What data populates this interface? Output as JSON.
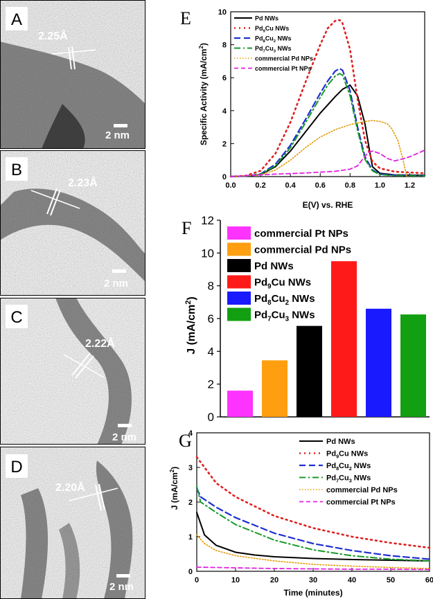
{
  "panels": {
    "A": {
      "letter": "A",
      "spacing": "2.25Å",
      "scale": "2 nm"
    },
    "B": {
      "letter": "B",
      "spacing": "2.23Å",
      "scale": "2 nm"
    },
    "C": {
      "letter": "C",
      "spacing": "2.22Å",
      "scale": "2 nm"
    },
    "D": {
      "letter": "D",
      "spacing": "2.20Å",
      "scale": "2 nm"
    }
  },
  "colors": {
    "pd_nws": "#000000",
    "pd9cu": "#e02020",
    "pd8cu2": "#1f2fd0",
    "pd7cu3": "#179a2a",
    "comm_pd": "#e39a00",
    "comm_pt": "#e020e0",
    "bar_pt": "#ff33ff",
    "bar_pd_np": "#ff9f0f",
    "bar_pd_nw": "#000000",
    "bar_pd9cu": "#ff1a1a",
    "bar_pd8cu2": "#1a1aff",
    "bar_pd7cu3": "#12a012"
  },
  "chart_data": [
    {
      "panel": "E",
      "type": "line",
      "xlabel": "E(V) vs. RHE",
      "ylabel": "Specific Activity (mA/cm²)",
      "xlim": [
        0,
        1.3
      ],
      "ylim": [
        0,
        10
      ],
      "xticks": [
        "0.0",
        "0.2",
        "0.4",
        "0.6",
        "0.8",
        "1.0",
        "1.2"
      ],
      "yticks": [
        "0",
        "2",
        "4",
        "6",
        "8",
        "10"
      ],
      "legend_position": "top-left",
      "series": [
        {
          "name": "Pd NWs",
          "style": "solid",
          "x": [
            0,
            0.1,
            0.2,
            0.3,
            0.4,
            0.5,
            0.6,
            0.7,
            0.75,
            0.8,
            0.85,
            0.9,
            0.93,
            0.95,
            1.0,
            1.1,
            1.3
          ],
          "y": [
            0,
            0.03,
            0.12,
            0.6,
            1.55,
            2.7,
            3.85,
            4.85,
            5.3,
            5.55,
            4.9,
            3.2,
            1.6,
            0.6,
            0.2,
            0.1,
            0.08
          ]
        },
        {
          "name": "Pd9Cu NWs",
          "style": "dotted",
          "x": [
            0,
            0.1,
            0.2,
            0.3,
            0.4,
            0.5,
            0.6,
            0.65,
            0.7,
            0.73,
            0.75,
            0.8,
            0.85,
            0.9,
            0.95,
            1.0,
            1.1,
            1.3
          ],
          "y": [
            0,
            0.05,
            0.35,
            1.4,
            3.3,
            5.7,
            8.0,
            9.0,
            9.45,
            9.5,
            9.3,
            7.7,
            4.7,
            2.2,
            0.9,
            0.5,
            0.3,
            0.2
          ]
        },
        {
          "name": "Pd8Cu2 NWs",
          "style": "dashed",
          "x": [
            0,
            0.1,
            0.2,
            0.3,
            0.4,
            0.5,
            0.6,
            0.65,
            0.7,
            0.73,
            0.75,
            0.8,
            0.85,
            0.9,
            0.95,
            1.0,
            1.1,
            1.3
          ],
          "y": [
            0,
            0.03,
            0.15,
            0.75,
            1.9,
            3.45,
            5.05,
            5.8,
            6.4,
            6.55,
            6.45,
            5.2,
            3.0,
            1.2,
            0.4,
            0.15,
            0.08,
            0.05
          ]
        },
        {
          "name": "Pd7Cu3 NWs",
          "style": "dashdot",
          "x": [
            0,
            0.1,
            0.2,
            0.3,
            0.4,
            0.5,
            0.6,
            0.65,
            0.7,
            0.73,
            0.75,
            0.8,
            0.85,
            0.9,
            0.95,
            1.0,
            1.1,
            1.3
          ],
          "y": [
            0,
            0.03,
            0.13,
            0.65,
            1.75,
            3.25,
            4.8,
            5.55,
            6.1,
            6.25,
            6.15,
            4.9,
            2.8,
            1.05,
            0.35,
            0.12,
            0.06,
            0.04
          ]
        },
        {
          "name": "commercial Pd NPs",
          "style": "dotted-fine",
          "x": [
            0,
            0.2,
            0.3,
            0.4,
            0.5,
            0.6,
            0.7,
            0.8,
            0.9,
            0.95,
            1.0,
            1.05,
            1.08,
            1.12,
            1.15,
            1.17,
            1.18
          ],
          "y": [
            0,
            0.1,
            0.4,
            1.0,
            1.75,
            2.4,
            2.85,
            3.15,
            3.35,
            3.4,
            3.35,
            3.2,
            2.9,
            2.2,
            1.2,
            0.4,
            0
          ]
        },
        {
          "name": "commercial Pt NPs",
          "style": "dashed-fine",
          "x": [
            0,
            0.2,
            0.3,
            0.4,
            0.5,
            0.6,
            0.7,
            0.8,
            0.85,
            0.88,
            0.92,
            0.95,
            1.0,
            1.05,
            1.1,
            1.2,
            1.3
          ],
          "y": [
            0,
            0.1,
            0.15,
            0.18,
            0.22,
            0.27,
            0.32,
            0.45,
            0.65,
            1.0,
            1.45,
            1.55,
            1.4,
            1.1,
            0.95,
            1.2,
            1.6
          ]
        }
      ]
    },
    {
      "panel": "F",
      "type": "bar",
      "ylabel": "J (mA/cm²)",
      "ylim": [
        0,
        12
      ],
      "yticks": [
        "0",
        "2",
        "4",
        "6",
        "8",
        "10",
        "12"
      ],
      "legend_position": "top-left",
      "categories": [
        "commercial Pt NPs",
        "commercial Pd NPs",
        "Pd NWs",
        "Pd9Cu NWs",
        "Pd8Cu2 NWs",
        "Pd7Cu3 NWs"
      ],
      "values": [
        1.6,
        3.45,
        5.55,
        9.5,
        6.6,
        6.25
      ]
    },
    {
      "panel": "G",
      "type": "line",
      "xlabel": "Time (minutes)",
      "ylabel": "J (mA/cm²)",
      "xlim": [
        0,
        60
      ],
      "ylim": [
        0,
        4
      ],
      "xticks": [
        "0",
        "10",
        "20",
        "30",
        "40",
        "50",
        "60"
      ],
      "yticks": [
        "0",
        "1",
        "2",
        "3",
        "4"
      ],
      "legend_position": "top-right",
      "series": [
        {
          "name": "Pd NWs",
          "style": "solid",
          "x": [
            0,
            2,
            5,
            10,
            15,
            20,
            30,
            40,
            50,
            60
          ],
          "y": [
            1.7,
            1.05,
            0.75,
            0.55,
            0.47,
            0.42,
            0.37,
            0.34,
            0.32,
            0.3
          ]
        },
        {
          "name": "Pd9Cu NWs",
          "style": "dotted",
          "x": [
            0,
            5,
            10,
            20,
            30,
            40,
            50,
            60
          ],
          "y": [
            3.3,
            2.55,
            2.15,
            1.6,
            1.25,
            1.0,
            0.82,
            0.68
          ]
        },
        {
          "name": "Pd8Cu2 NWs",
          "style": "dashed",
          "x": [
            0,
            1,
            5,
            10,
            20,
            30,
            40,
            50,
            60
          ],
          "y": [
            2.4,
            2.15,
            1.85,
            1.55,
            1.1,
            0.8,
            0.6,
            0.45,
            0.35
          ]
        },
        {
          "name": "Pd7Cu3 NWs",
          "style": "dashdot",
          "x": [
            0,
            1,
            5,
            10,
            20,
            30,
            40,
            50,
            60
          ],
          "y": [
            2.45,
            2.0,
            1.7,
            1.35,
            0.9,
            0.62,
            0.45,
            0.35,
            0.3
          ]
        },
        {
          "name": "commercial Pd NPs",
          "style": "dotted-fine",
          "x": [
            0,
            2,
            5,
            10,
            20,
            30,
            40,
            50,
            60
          ],
          "y": [
            1.05,
            0.8,
            0.6,
            0.45,
            0.3,
            0.2,
            0.15,
            0.11,
            0.08
          ]
        },
        {
          "name": "commercial Pt NPs",
          "style": "dashed-fine",
          "x": [
            0,
            10,
            20,
            30,
            40,
            50,
            60
          ],
          "y": [
            0.12,
            0.1,
            0.08,
            0.07,
            0.06,
            0.06,
            0.05
          ]
        }
      ]
    }
  ]
}
